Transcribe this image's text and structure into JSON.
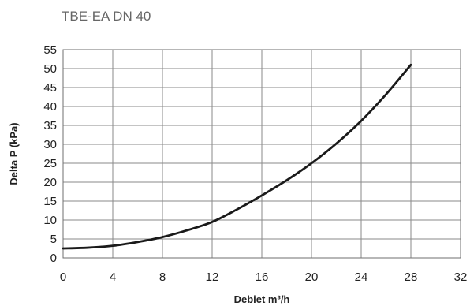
{
  "chart_data": {
    "type": "line",
    "title": "TBE-EA DN 40",
    "xlabel": "Debiet m³/h",
    "ylabel": "Delta P (kPa)",
    "xlim": [
      0,
      32
    ],
    "ylim": [
      0,
      55
    ],
    "x_ticks": [
      "0",
      "4",
      "8",
      "12",
      "16",
      "20",
      "24",
      "28",
      "32"
    ],
    "y_ticks": [
      "0",
      "5",
      "10",
      "15",
      "20",
      "25",
      "30",
      "35",
      "40",
      "45",
      "50",
      "55"
    ],
    "grid": true,
    "series": [
      {
        "x": [
          0,
          2,
          4,
          6,
          8,
          10,
          12,
          14,
          16,
          18,
          20,
          22,
          24,
          26,
          28
        ],
        "y": [
          2.5,
          2.7,
          3.2,
          4.2,
          5.5,
          7.3,
          9.5,
          12.8,
          16.5,
          20.5,
          25,
          30.2,
          36.2,
          43.2,
          51
        ]
      }
    ]
  }
}
